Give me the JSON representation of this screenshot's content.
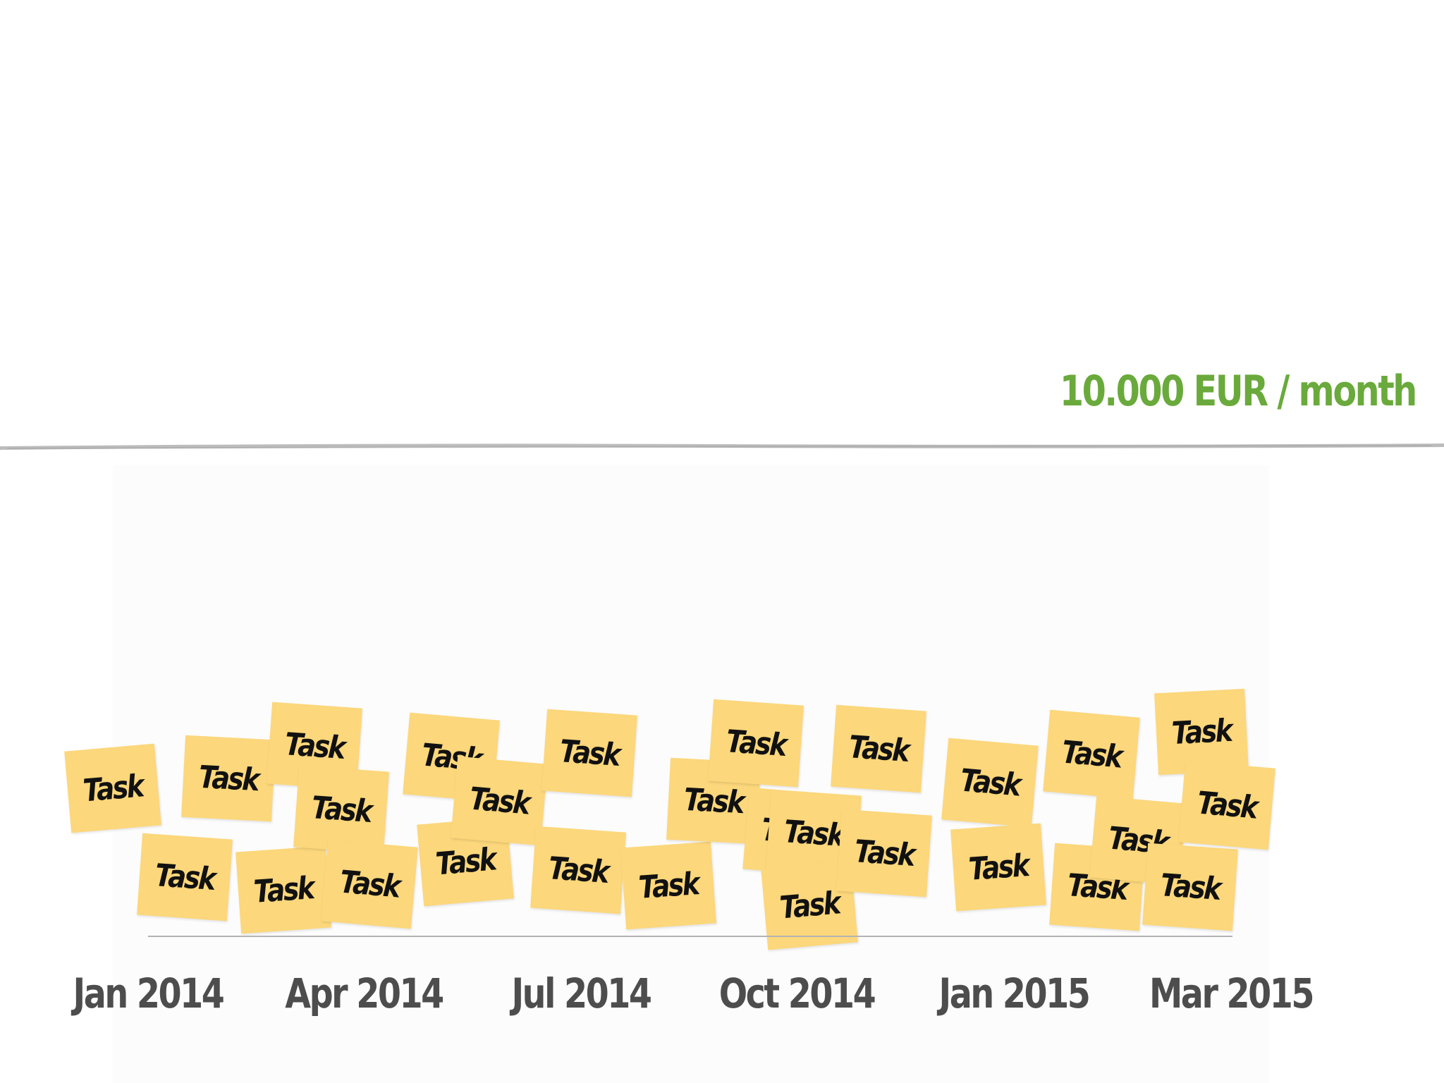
{
  "colors": {
    "threshold_text": "#6aaa3c",
    "note_fill": "#fcd77b",
    "note_text": "#111111",
    "axis_text": "#4d4d4d",
    "threshold_line": "#b8b8b8"
  },
  "threshold": {
    "label": "10.000 EUR / month"
  },
  "timeline": {
    "labels": [
      "Jan 2014",
      "Apr 2014",
      "Jul 2014",
      "Oct 2014",
      "Jan 2015",
      "Mar 2015"
    ]
  },
  "tasks": [
    "Task",
    "Task",
    "Task",
    "Task",
    "Task",
    "Task",
    "Task",
    "Task",
    "Task",
    "Task",
    "Task",
    "Task",
    "Task",
    "Task",
    "Task",
    "Task",
    "Task",
    "Task",
    "Task",
    "Task",
    "Task",
    "Task",
    "Task",
    "Task",
    "Task",
    "Task",
    "Task",
    "Task",
    "Task",
    "Task",
    "Task",
    "Task"
  ]
}
